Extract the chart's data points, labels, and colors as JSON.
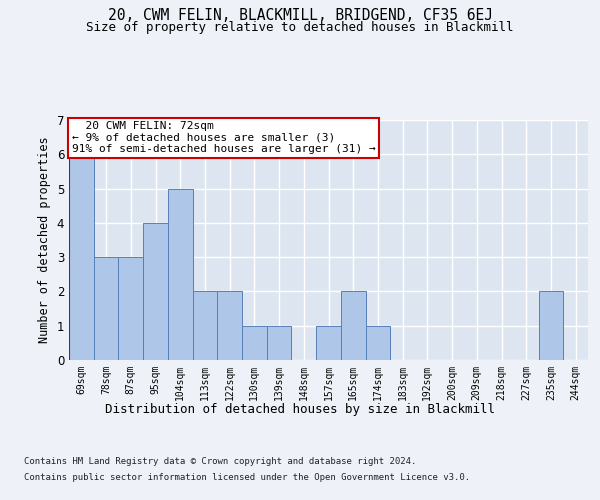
{
  "title": "20, CWM FELIN, BLACKMILL, BRIDGEND, CF35 6EJ",
  "subtitle": "Size of property relative to detached houses in Blackmill",
  "xlabel": "Distribution of detached houses by size in Blackmill",
  "ylabel": "Number of detached properties",
  "footer_line1": "Contains HM Land Registry data © Crown copyright and database right 2024.",
  "footer_line2": "Contains public sector information licensed under the Open Government Licence v3.0.",
  "bar_labels": [
    "69sqm",
    "78sqm",
    "87sqm",
    "95sqm",
    "104sqm",
    "113sqm",
    "122sqm",
    "130sqm",
    "139sqm",
    "148sqm",
    "157sqm",
    "165sqm",
    "174sqm",
    "183sqm",
    "192sqm",
    "200sqm",
    "209sqm",
    "218sqm",
    "227sqm",
    "235sqm",
    "244sqm"
  ],
  "bar_values": [
    6,
    3,
    3,
    4,
    5,
    2,
    2,
    1,
    1,
    0,
    1,
    2,
    1,
    0,
    0,
    0,
    0,
    0,
    0,
    2,
    0
  ],
  "bar_color": "#aec6e8",
  "bar_edge_color": "#5580b8",
  "ylim": [
    0,
    7
  ],
  "yticks": [
    0,
    1,
    2,
    3,
    4,
    5,
    6,
    7
  ],
  "annotation_box_text": "  20 CWM FELIN: 72sqm\n← 9% of detached houses are smaller (3)\n91% of semi-detached houses are larger (31) →",
  "background_color": "#eef2f8",
  "plot_bg_color": "#dde5f0",
  "grid_color": "#ffffff",
  "annotation_box_color": "#ffffff",
  "annotation_box_edge_color": "#cc0000",
  "figsize": [
    6.0,
    5.0
  ],
  "dpi": 100
}
